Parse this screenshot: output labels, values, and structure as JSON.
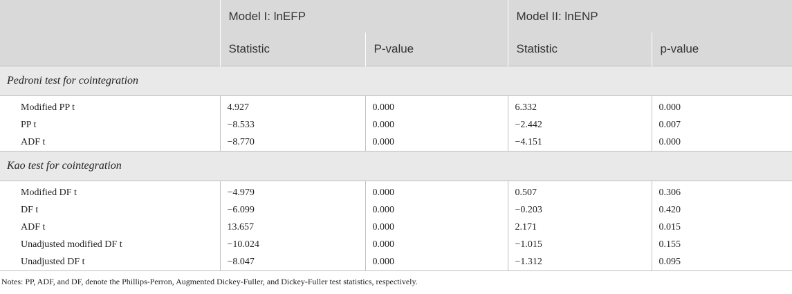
{
  "header": {
    "model1": "Model I: lnEFP",
    "model2": "Model II: lnENP",
    "sub": [
      "Statistic",
      "P-value",
      "Statistic",
      "p-value"
    ]
  },
  "sections": [
    {
      "title": "Pedroni test for cointegration",
      "rows": [
        {
          "label": "Modified PP t",
          "values": [
            "4.927",
            "0.000",
            "6.332",
            "0.000"
          ]
        },
        {
          "label": "PP t",
          "values": [
            "−8.533",
            "0.000",
            "−2.442",
            "0.007"
          ]
        },
        {
          "label": "ADF t",
          "values": [
            "−8.770",
            "0.000",
            "−4.151",
            "0.000"
          ]
        }
      ]
    },
    {
      "title": "Kao test for cointegration",
      "rows": [
        {
          "label": "Modified DF t",
          "values": [
            "−4.979",
            "0.000",
            "0.507",
            "0.306"
          ]
        },
        {
          "label": "DF t",
          "values": [
            "−6.099",
            "0.000",
            "−0.203",
            "0.420"
          ]
        },
        {
          "label": "ADF t",
          "values": [
            "13.657",
            "0.000",
            "2.171",
            "0.015"
          ]
        },
        {
          "label": "Unadjusted modified DF t",
          "values": [
            "−10.024",
            "0.000",
            "−1.015",
            "0.155"
          ]
        },
        {
          "label": "Unadjusted DF t",
          "values": [
            "−8.047",
            "0.000",
            "−1.312",
            "0.095"
          ]
        }
      ]
    }
  ],
  "notes": "Notes: PP, ADF, and DF, denote the Phillips-Perron, Augmented Dickey-Fuller, and Dickey-Fuller test statistics, respectively."
}
